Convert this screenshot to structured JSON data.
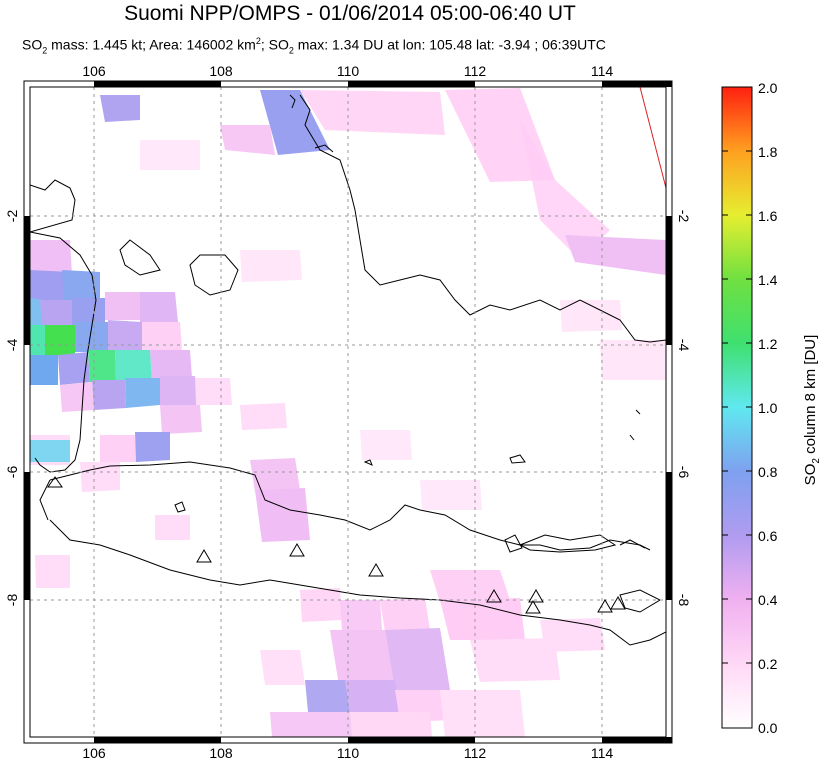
{
  "title": "Suomi NPP/OMPS - 01/06/2014 05:00-06:40 UT",
  "subtitle": {
    "so2_mass_prefix": "SO",
    "so2_mass_text": " mass: 1.445 kt; Area: 146002 km",
    "so2_max_prefix": "; SO",
    "so2_max_text": " max: 1.34 DU at lon: 105.48 lat: -3.94 ; 06:39UTC",
    "sub2": "2",
    "sup2": "2"
  },
  "map": {
    "lon_labels": [
      "106",
      "108",
      "110",
      "112",
      "114"
    ],
    "lat_labels": [
      "-2",
      "-4",
      "-6",
      "-8"
    ],
    "lon_range": [
      105.0,
      115.0
    ],
    "lat_range": [
      -10.0,
      0.0
    ]
  },
  "colorbar": {
    "title": "SO2 column 8 km [DU]",
    "title_prefix": "SO",
    "title_sub": "2",
    "title_suffix": " column 8 km [DU]",
    "tick_labels": [
      "2.0",
      "1.8",
      "1.6",
      "1.4",
      "1.2",
      "1.0",
      "0.8",
      "0.6",
      "0.4",
      "0.2",
      "0.0"
    ],
    "range": [
      0.0,
      2.0
    ],
    "colors": [
      "#ffffff",
      "#ffd0f4",
      "#d8a8f0",
      "#9f9ff0",
      "#6fa8f0",
      "#5fe6f0",
      "#50e68a",
      "#3fd83a",
      "#b0e030",
      "#ffee30",
      "#ffa020",
      "#ff3010"
    ]
  },
  "volcano_marker": "triangle-icon"
}
